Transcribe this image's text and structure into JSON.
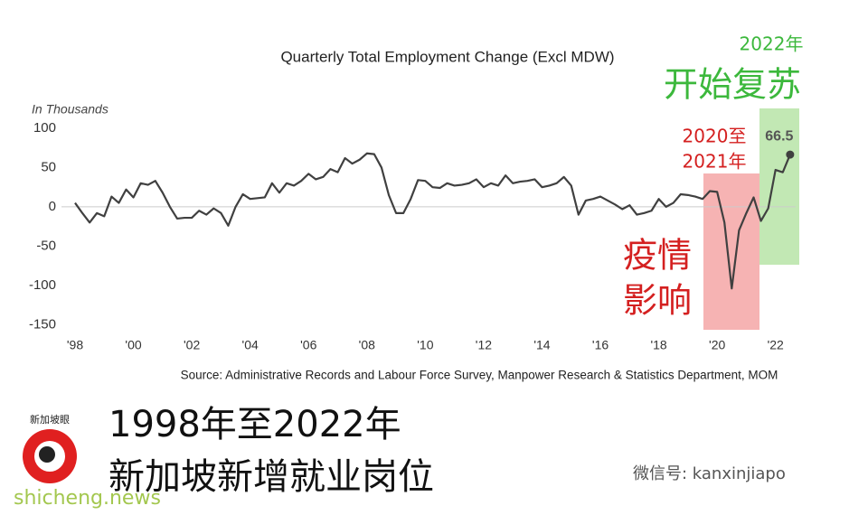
{
  "chart_data": {
    "type": "line",
    "title": "Quarterly Total Employment Change (Excl MDW)",
    "y_label": "In Thousands",
    "source": "Source: Administrative Records and Labour Force Survey, Manpower Research & Statistics Department, MOM",
    "categories": [
      "'98",
      null,
      null,
      null,
      null,
      null,
      null,
      null,
      "'00",
      null,
      null,
      null,
      null,
      null,
      null,
      null,
      "'02",
      null,
      null,
      null,
      null,
      null,
      null,
      null,
      "'04",
      null,
      null,
      null,
      null,
      null,
      null,
      null,
      "'06",
      null,
      null,
      null,
      null,
      null,
      null,
      null,
      "'08",
      null,
      null,
      null,
      null,
      null,
      null,
      null,
      "'10",
      null,
      null,
      null,
      null,
      null,
      null,
      null,
      "'12",
      null,
      null,
      null,
      null,
      null,
      null,
      null,
      "'14",
      null,
      null,
      null,
      null,
      null,
      null,
      null,
      "'16",
      null,
      null,
      null,
      null,
      null,
      null,
      null,
      "'18",
      null,
      null,
      null,
      null,
      null,
      null,
      null,
      "'20",
      null,
      null,
      null,
      null,
      null,
      null,
      null,
      "'22",
      null,
      null
    ],
    "series": [
      {
        "name": "Total Employment Change",
        "color": "#404040",
        "values": [
          5,
          -8,
          -20,
          -8,
          -12,
          13,
          5,
          22,
          12,
          30,
          28,
          33,
          18,
          0,
          -15,
          -14,
          -14,
          -5,
          -10,
          -2,
          -8,
          -24,
          0,
          16,
          10,
          11,
          12,
          30,
          18,
          30,
          27,
          33,
          42,
          35,
          38,
          48,
          44,
          62,
          55,
          60,
          68,
          67,
          50,
          15,
          -8,
          -8,
          10,
          34,
          33,
          25,
          24,
          30,
          27,
          28,
          30,
          35,
          25,
          30,
          27,
          40,
          30,
          32,
          33,
          35,
          25,
          27,
          30,
          38,
          27,
          -10,
          8,
          10,
          13,
          8,
          3,
          -3,
          2,
          -10,
          -8,
          -5,
          10,
          0,
          5,
          16,
          15,
          13,
          10,
          20,
          19,
          -20,
          -104,
          -30,
          -8,
          12,
          -18,
          -2,
          47,
          44,
          66.5
        ]
      }
    ],
    "ylim": [
      -160,
      108
    ],
    "yticks": [
      100,
      50,
      0,
      -50,
      -100,
      -150
    ],
    "annotations": {
      "recovery_year": "2022年",
      "recovery": "开始复苏",
      "covid_years_1": "2020至",
      "covid_years_2": "2021年",
      "covid_1": "疫情",
      "covid_2": "影响",
      "headline_1": "1998年至2022年",
      "headline_2": "新加坡新增就业岗位",
      "wechat": "微信号: kanxinjiapo",
      "logo": "新加坡眼",
      "watermark": "shicheng.news"
    }
  }
}
